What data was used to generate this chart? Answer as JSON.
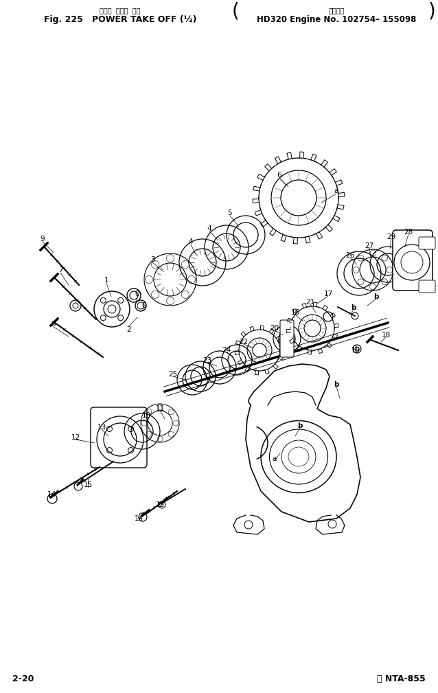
{
  "title_japanese": "パワー  テーク  オフ",
  "title_main": "Fig. 225   POWER TAKE OFF (½)",
  "title_right_jp": "適用号機",
  "title_right": "HD320 Engine No. 102754– 155098",
  "footer_left": "2-20",
  "footer_right": "Ⓐ NTA-855",
  "bg_color": "#ffffff",
  "fg_color": "#000000"
}
